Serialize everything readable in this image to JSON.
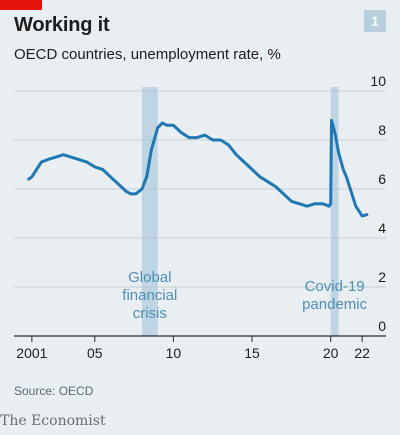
{
  "title": "Working it",
  "subtitle": "OECD countries, unemployment rate, %",
  "chart_number": "1",
  "source": "Source: OECD",
  "brand": "The Economist",
  "colors": {
    "line": "#1f77b4",
    "shade": "#b7d0e1",
    "accent": "#e3120b",
    "background": "#e9eef2"
  },
  "chart_data": {
    "type": "line",
    "title": "Working it",
    "subtitle": "OECD countries, unemployment rate, %",
    "xlim": [
      2000.5,
      2022.5
    ],
    "ylim": [
      0,
      10
    ],
    "y_ticks": [
      0,
      2,
      4,
      6,
      8,
      10
    ],
    "y_tick_labels": [
      "0",
      "2",
      "4",
      "6",
      "8",
      "10"
    ],
    "x_ticks": [
      2001,
      2005,
      2010,
      2015,
      2020,
      2022
    ],
    "x_tick_labels": [
      "2001",
      "05",
      "10",
      "15",
      "20",
      "22"
    ],
    "grid": true,
    "shaded_regions": [
      {
        "start": 2008.0,
        "end": 2009.0,
        "label_lines": [
          "Global",
          "financial",
          "crisis"
        ]
      },
      {
        "start": 2020.0,
        "end": 2020.5,
        "label_lines": [
          "Covid-19",
          "pandemic"
        ]
      }
    ],
    "series": [
      {
        "x": [
          2000.8,
          2001.0,
          2001.3,
          2001.6,
          2002.0,
          2002.5,
          2003.0,
          2003.5,
          2004.0,
          2004.5,
          2005.0,
          2005.5,
          2006.0,
          2006.5,
          2007.0,
          2007.3,
          2007.6,
          2008.0,
          2008.3,
          2008.6,
          2009.0,
          2009.3,
          2009.6,
          2010.0,
          2010.5,
          2011.0,
          2011.5,
          2012.0,
          2012.5,
          2013.0,
          2013.5,
          2014.0,
          2014.5,
          2015.0,
          2015.5,
          2016.0,
          2016.5,
          2017.0,
          2017.5,
          2018.0,
          2018.5,
          2019.0,
          2019.5,
          2019.9,
          2020.0,
          2020.05,
          2020.15,
          2020.3,
          2020.5,
          2020.8,
          2021.0,
          2021.3,
          2021.6,
          2022.0,
          2022.3
        ],
        "y": [
          6.4,
          6.5,
          6.8,
          7.1,
          7.2,
          7.3,
          7.4,
          7.3,
          7.2,
          7.1,
          6.9,
          6.8,
          6.5,
          6.2,
          5.9,
          5.8,
          5.8,
          6.0,
          6.5,
          7.6,
          8.5,
          8.7,
          8.6,
          8.6,
          8.3,
          8.1,
          8.1,
          8.2,
          8.0,
          8.0,
          7.8,
          7.4,
          7.1,
          6.8,
          6.5,
          6.3,
          6.1,
          5.8,
          5.5,
          5.4,
          5.3,
          5.4,
          5.4,
          5.3,
          5.4,
          8.8,
          8.6,
          8.2,
          7.5,
          6.8,
          6.5,
          5.9,
          5.3,
          4.9,
          4.95
        ]
      }
    ]
  }
}
